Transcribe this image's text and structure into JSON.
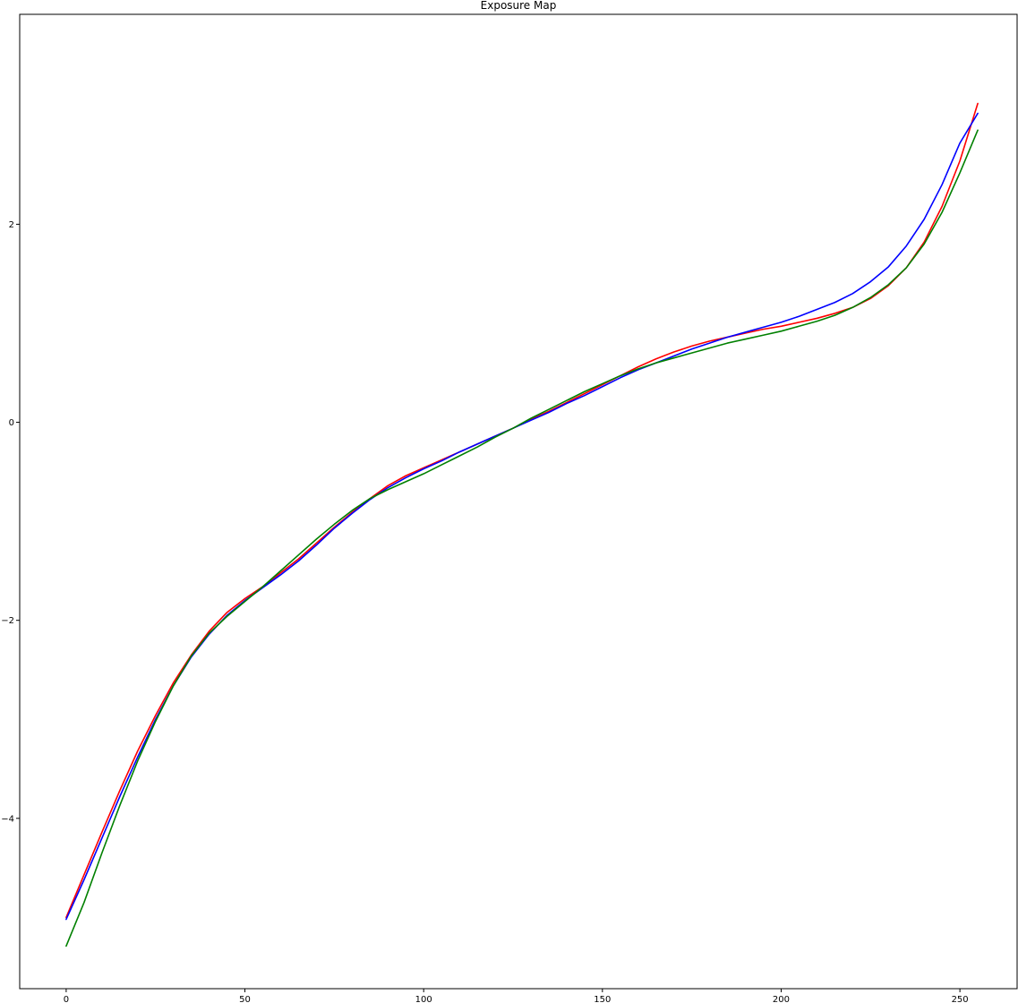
{
  "chart_data": {
    "type": "line",
    "title": "Exposure Map",
    "xlabel": "",
    "ylabel": "",
    "xlim": [
      -13,
      266
    ],
    "ylim": [
      -5.72,
      4.12
    ],
    "xticks": [
      0,
      50,
      100,
      150,
      200,
      250
    ],
    "yticks": [
      -4,
      -2,
      0,
      2
    ],
    "ytick_labels": [
      "−4",
      "−2",
      "0",
      "2"
    ],
    "grid": false,
    "legend": "none",
    "series": [
      {
        "color": "#ff0000",
        "x": [
          0,
          5,
          10,
          15,
          20,
          25,
          30,
          35,
          40,
          45,
          50,
          55,
          60,
          65,
          70,
          75,
          80,
          85,
          90,
          95,
          100,
          105,
          110,
          115,
          120,
          125,
          130,
          135,
          140,
          145,
          150,
          155,
          160,
          165,
          170,
          175,
          180,
          185,
          190,
          195,
          200,
          205,
          210,
          215,
          220,
          225,
          230,
          235,
          240,
          245,
          250,
          255
        ],
        "y": [
          -5.0,
          -4.57,
          -4.14,
          -3.72,
          -3.32,
          -2.96,
          -2.63,
          -2.35,
          -2.11,
          -1.92,
          -1.78,
          -1.66,
          -1.52,
          -1.38,
          -1.22,
          -1.06,
          -0.91,
          -0.77,
          -0.64,
          -0.54,
          -0.46,
          -0.38,
          -0.3,
          -0.22,
          -0.14,
          -0.06,
          0.03,
          0.11,
          0.2,
          0.29,
          0.38,
          0.47,
          0.56,
          0.64,
          0.71,
          0.77,
          0.82,
          0.86,
          0.9,
          0.94,
          0.97,
          1.01,
          1.05,
          1.1,
          1.16,
          1.25,
          1.38,
          1.56,
          1.82,
          2.18,
          2.64,
          3.22
        ]
      },
      {
        "color": "#0000ff",
        "x": [
          0,
          5,
          10,
          15,
          20,
          25,
          30,
          35,
          40,
          45,
          50,
          55,
          60,
          65,
          70,
          75,
          80,
          85,
          90,
          95,
          100,
          105,
          110,
          115,
          120,
          125,
          130,
          135,
          140,
          145,
          150,
          155,
          160,
          165,
          170,
          175,
          180,
          185,
          190,
          195,
          200,
          205,
          210,
          215,
          220,
          225,
          230,
          235,
          240,
          245,
          250,
          255
        ],
        "y": [
          -5.02,
          -4.62,
          -4.2,
          -3.78,
          -3.38,
          -3.0,
          -2.66,
          -2.37,
          -2.14,
          -1.95,
          -1.8,
          -1.67,
          -1.54,
          -1.4,
          -1.24,
          -1.07,
          -0.92,
          -0.78,
          -0.66,
          -0.56,
          -0.47,
          -0.39,
          -0.3,
          -0.22,
          -0.14,
          -0.06,
          0.02,
          0.1,
          0.19,
          0.27,
          0.36,
          0.45,
          0.53,
          0.6,
          0.67,
          0.74,
          0.8,
          0.86,
          0.91,
          0.96,
          1.01,
          1.07,
          1.14,
          1.21,
          1.3,
          1.42,
          1.57,
          1.78,
          2.05,
          2.4,
          2.82,
          3.12
        ]
      },
      {
        "color": "#008000",
        "x": [
          0,
          5,
          10,
          15,
          20,
          25,
          30,
          35,
          40,
          45,
          50,
          55,
          60,
          65,
          70,
          75,
          80,
          85,
          90,
          95,
          100,
          105,
          110,
          115,
          120,
          125,
          130,
          135,
          140,
          145,
          150,
          155,
          160,
          165,
          170,
          175,
          180,
          185,
          190,
          195,
          200,
          205,
          210,
          215,
          220,
          225,
          230,
          235,
          240,
          245,
          250,
          255
        ],
        "y": [
          -5.29,
          -4.85,
          -4.35,
          -3.87,
          -3.42,
          -3.02,
          -2.66,
          -2.36,
          -2.13,
          -1.96,
          -1.81,
          -1.66,
          -1.5,
          -1.34,
          -1.18,
          -1.03,
          -0.89,
          -0.77,
          -0.68,
          -0.6,
          -0.52,
          -0.43,
          -0.34,
          -0.25,
          -0.15,
          -0.06,
          0.04,
          0.13,
          0.22,
          0.31,
          0.39,
          0.47,
          0.54,
          0.6,
          0.65,
          0.7,
          0.75,
          0.8,
          0.84,
          0.88,
          0.92,
          0.97,
          1.02,
          1.08,
          1.16,
          1.26,
          1.39,
          1.56,
          1.8,
          2.12,
          2.52,
          2.95
        ]
      }
    ]
  }
}
